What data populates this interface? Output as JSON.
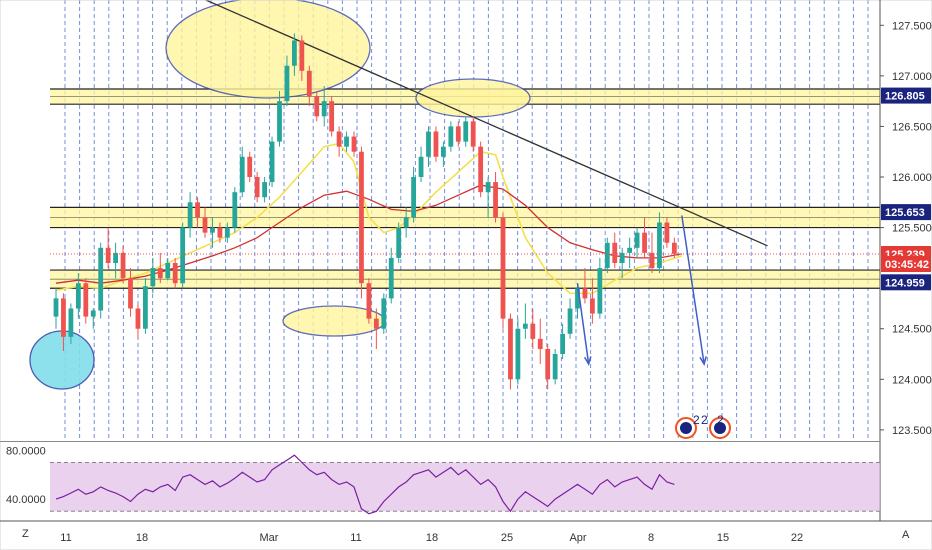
{
  "chart_data": {
    "type": "candlestick",
    "price_axis": {
      "ticks": [
        "127.500",
        "127.000",
        "126.500",
        "126.000",
        "125.500",
        "124.500",
        "124.000",
        "123.500"
      ],
      "tick_values": [
        127.5,
        127.0,
        126.5,
        126.0,
        125.5,
        124.5,
        124.0,
        123.5
      ],
      "ylim": [
        123.4,
        127.75
      ]
    },
    "time_axis": {
      "ticks": [
        "11",
        "18",
        "Mar",
        "11",
        "18",
        "25",
        "Apr",
        "8",
        "15",
        "22"
      ]
    },
    "price_tags": [
      {
        "value": 126.805,
        "text": "126.805",
        "color": "#1a237e"
      },
      {
        "value": 125.653,
        "text": "125.653",
        "color": "#1a237e"
      },
      {
        "value": 125.239,
        "text": "125.239",
        "color": "#e53935"
      },
      {
        "value": 125.14,
        "text": "03:45:42",
        "color": "#e53935"
      },
      {
        "value": 124.959,
        "text": "124.959",
        "color": "#1a237e"
      }
    ],
    "zones": [
      {
        "from": 126.72,
        "to": 126.87
      },
      {
        "from": 125.5,
        "to": 125.7
      },
      {
        "from": 124.9,
        "to": 125.08
      }
    ],
    "candles": [
      [
        124.62,
        124.9,
        124.5,
        124.8
      ],
      [
        124.8,
        124.85,
        124.28,
        124.42
      ],
      [
        124.42,
        124.75,
        124.35,
        124.7
      ],
      [
        124.7,
        125.05,
        124.6,
        124.95
      ],
      [
        124.95,
        125.0,
        124.55,
        124.62
      ],
      [
        124.62,
        124.7,
        124.5,
        124.68
      ],
      [
        124.68,
        125.35,
        124.6,
        125.3
      ],
      [
        125.3,
        125.5,
        125.1,
        125.15
      ],
      [
        125.15,
        125.35,
        125.0,
        125.25
      ],
      [
        125.25,
        125.32,
        124.95,
        125.0
      ],
      [
        125.0,
        125.1,
        124.62,
        124.7
      ],
      [
        124.7,
        124.75,
        124.4,
        124.5
      ],
      [
        124.5,
        125.0,
        124.45,
        124.92
      ],
      [
        124.92,
        125.2,
        124.85,
        125.1
      ],
      [
        125.1,
        125.25,
        124.95,
        125.0
      ],
      [
        125.0,
        125.2,
        124.98,
        125.15
      ],
      [
        125.15,
        125.2,
        124.9,
        124.95
      ],
      [
        124.95,
        125.55,
        124.9,
        125.5
      ],
      [
        125.5,
        125.85,
        125.4,
        125.75
      ],
      [
        125.75,
        125.8,
        125.5,
        125.6
      ],
      [
        125.6,
        125.7,
        125.4,
        125.45
      ],
      [
        125.45,
        125.6,
        125.3,
        125.5
      ],
      [
        125.5,
        125.55,
        125.35,
        125.4
      ],
      [
        125.4,
        125.55,
        125.35,
        125.5
      ],
      [
        125.5,
        125.9,
        125.45,
        125.85
      ],
      [
        125.85,
        126.3,
        125.8,
        126.2
      ],
      [
        126.2,
        126.25,
        125.95,
        126.0
      ],
      [
        126.0,
        126.05,
        125.75,
        125.8
      ],
      [
        125.8,
        126.0,
        125.75,
        125.95
      ],
      [
        125.95,
        126.4,
        125.9,
        126.35
      ],
      [
        126.35,
        126.85,
        126.3,
        126.75
      ],
      [
        126.75,
        127.2,
        126.7,
        127.1
      ],
      [
        127.1,
        127.42,
        127.0,
        127.35
      ],
      [
        127.35,
        127.4,
        126.95,
        127.05
      ],
      [
        127.05,
        127.1,
        126.7,
        126.8
      ],
      [
        126.8,
        126.85,
        126.55,
        126.6
      ],
      [
        126.6,
        126.9,
        126.5,
        126.75
      ],
      [
        126.75,
        126.8,
        126.4,
        126.45
      ],
      [
        126.45,
        126.5,
        126.2,
        126.3
      ],
      [
        126.3,
        126.45,
        126.25,
        126.4
      ],
      [
        126.4,
        126.45,
        126.2,
        126.25
      ],
      [
        126.25,
        126.3,
        124.8,
        124.95
      ],
      [
        124.95,
        125.0,
        124.55,
        124.6
      ],
      [
        124.6,
        124.7,
        124.3,
        124.5
      ],
      [
        124.5,
        124.85,
        124.45,
        124.8
      ],
      [
        124.8,
        125.3,
        124.75,
        125.2
      ],
      [
        125.2,
        125.55,
        125.15,
        125.5
      ],
      [
        125.5,
        125.7,
        125.4,
        125.6
      ],
      [
        125.6,
        126.1,
        125.55,
        126.0
      ],
      [
        126.0,
        126.3,
        125.95,
        126.2
      ],
      [
        126.2,
        126.5,
        126.1,
        126.45
      ],
      [
        126.45,
        126.5,
        126.15,
        126.2
      ],
      [
        126.2,
        126.35,
        126.1,
        126.3
      ],
      [
        126.3,
        126.55,
        126.25,
        126.5
      ],
      [
        126.5,
        126.55,
        126.3,
        126.35
      ],
      [
        126.35,
        126.6,
        126.3,
        126.55
      ],
      [
        126.55,
        126.6,
        126.25,
        126.3
      ],
      [
        126.3,
        126.35,
        125.8,
        125.85
      ],
      [
        125.85,
        126.0,
        125.6,
        125.95
      ],
      [
        125.95,
        126.05,
        125.55,
        125.6
      ],
      [
        125.6,
        125.65,
        124.5,
        124.6
      ],
      [
        124.6,
        124.65,
        123.9,
        124.0
      ],
      [
        124.0,
        124.6,
        123.95,
        124.5
      ],
      [
        124.5,
        124.75,
        124.4,
        124.55
      ],
      [
        124.55,
        124.7,
        124.3,
        124.4
      ],
      [
        124.4,
        124.6,
        124.15,
        124.3
      ],
      [
        124.3,
        124.35,
        123.9,
        124.0
      ],
      [
        124.0,
        124.3,
        123.95,
        124.25
      ],
      [
        124.25,
        124.55,
        124.2,
        124.45
      ],
      [
        124.45,
        124.8,
        124.4,
        124.7
      ],
      [
        124.7,
        124.95,
        124.6,
        124.9
      ],
      [
        124.9,
        125.1,
        124.75,
        124.8
      ],
      [
        124.8,
        125.0,
        124.55,
        124.65
      ],
      [
        124.65,
        125.2,
        124.6,
        125.1
      ],
      [
        125.1,
        125.4,
        125.05,
        125.35
      ],
      [
        125.35,
        125.45,
        125.1,
        125.15
      ],
      [
        125.15,
        125.3,
        125.0,
        125.25
      ],
      [
        125.25,
        125.4,
        125.1,
        125.3
      ],
      [
        125.3,
        125.5,
        125.2,
        125.45
      ],
      [
        125.45,
        125.6,
        125.2,
        125.25
      ],
      [
        125.25,
        125.45,
        125.05,
        125.1
      ],
      [
        125.1,
        125.65,
        125.05,
        125.55
      ],
      [
        125.55,
        125.6,
        125.3,
        125.35
      ],
      [
        125.35,
        125.4,
        125.2,
        125.24
      ]
    ],
    "ma_slow": [
      [
        0,
        124.95
      ],
      [
        3,
        124.98
      ],
      [
        6,
        124.95
      ],
      [
        9,
        124.98
      ],
      [
        12,
        125.02
      ],
      [
        15,
        125.08
      ],
      [
        18,
        125.15
      ],
      [
        21,
        125.22
      ],
      [
        24,
        125.3
      ],
      [
        27,
        125.4
      ],
      [
        30,
        125.55
      ],
      [
        33,
        125.7
      ],
      [
        36,
        125.82
      ],
      [
        39,
        125.86
      ],
      [
        42,
        125.78
      ],
      [
        45,
        125.68
      ],
      [
        48,
        125.66
      ],
      [
        51,
        125.72
      ],
      [
        54,
        125.82
      ],
      [
        57,
        125.92
      ],
      [
        60,
        125.88
      ],
      [
        63,
        125.72
      ],
      [
        66,
        125.5
      ],
      [
        69,
        125.35
      ],
      [
        72,
        125.28
      ],
      [
        75,
        125.22
      ],
      [
        78,
        125.2
      ],
      [
        81,
        125.2
      ],
      [
        84,
        125.24
      ]
    ],
    "ma_fast": [
      [
        0,
        124.88
      ],
      [
        3,
        124.92
      ],
      [
        6,
        124.9
      ],
      [
        9,
        124.98
      ],
      [
        12,
        125.05
      ],
      [
        15,
        125.15
      ],
      [
        18,
        125.25
      ],
      [
        21,
        125.35
      ],
      [
        24,
        125.45
      ],
      [
        27,
        125.6
      ],
      [
        30,
        125.8
      ],
      [
        33,
        126.05
      ],
      [
        36,
        126.3
      ],
      [
        38,
        126.33
      ],
      [
        40,
        126.15
      ],
      [
        42,
        125.6
      ],
      [
        44,
        125.45
      ],
      [
        46,
        125.5
      ],
      [
        48,
        125.62
      ],
      [
        51,
        125.85
      ],
      [
        54,
        126.05
      ],
      [
        57,
        126.25
      ],
      [
        59,
        126.22
      ],
      [
        60,
        126.0
      ],
      [
        63,
        125.4
      ],
      [
        66,
        125.05
      ],
      [
        69,
        124.85
      ],
      [
        72,
        124.85
      ],
      [
        75,
        124.98
      ],
      [
        78,
        125.1
      ],
      [
        81,
        125.15
      ],
      [
        84,
        125.22
      ]
    ],
    "rsi": {
      "ticks": [
        "80.0000",
        "40.0000"
      ],
      "tick_values": [
        80,
        40
      ],
      "band": [
        30,
        70
      ],
      "ylim": [
        22,
        86
      ],
      "values": [
        40,
        42,
        45,
        48,
        44,
        46,
        50,
        47,
        45,
        42,
        38,
        44,
        48,
        46,
        50,
        52,
        47,
        58,
        60,
        56,
        52,
        55,
        50,
        53,
        57,
        62,
        58,
        54,
        56,
        64,
        68,
        72,
        76,
        70,
        64,
        60,
        62,
        56,
        52,
        54,
        50,
        32,
        28,
        30,
        38,
        44,
        50,
        54,
        60,
        62,
        64,
        58,
        62,
        66,
        60,
        64,
        58,
        52,
        56,
        50,
        38,
        30,
        40,
        46,
        42,
        38,
        34,
        40,
        44,
        48,
        52,
        48,
        44,
        52,
        56,
        50,
        54,
        56,
        58,
        52,
        48,
        60,
        54,
        52
      ]
    },
    "annotations": {
      "arrow1": {
        "from": [
          70,
          124.95
        ],
        "to": [
          71.5,
          124.15
        ]
      },
      "arrow2": {
        "from": [
          84,
          125.62
        ],
        "to": [
          87,
          124.15
        ]
      },
      "trendline": {
        "from": [
          17,
          127.85
        ],
        "to": [
          95.5,
          125.32
        ]
      }
    },
    "watermark_digits": [
      "2",
      "2",
      "2"
    ],
    "corner_labels": {
      "left": "Z",
      "right": "A"
    }
  },
  "colors": {
    "up": "#26a69a",
    "down": "#ef5350",
    "ma_slow": "#d32f2f",
    "ma_fast": "#f4e04d",
    "zone_fill": "#fff59d",
    "zone_border": "#222222",
    "ellipse_fill": "#fff59d",
    "ellipse_left": "#80deea",
    "grid": "#5b7cd6",
    "trendline": "#333333",
    "arrow": "#3f5fc8",
    "rsi_line": "#7b1fa2",
    "rsi_band": "#e1bee7"
  }
}
